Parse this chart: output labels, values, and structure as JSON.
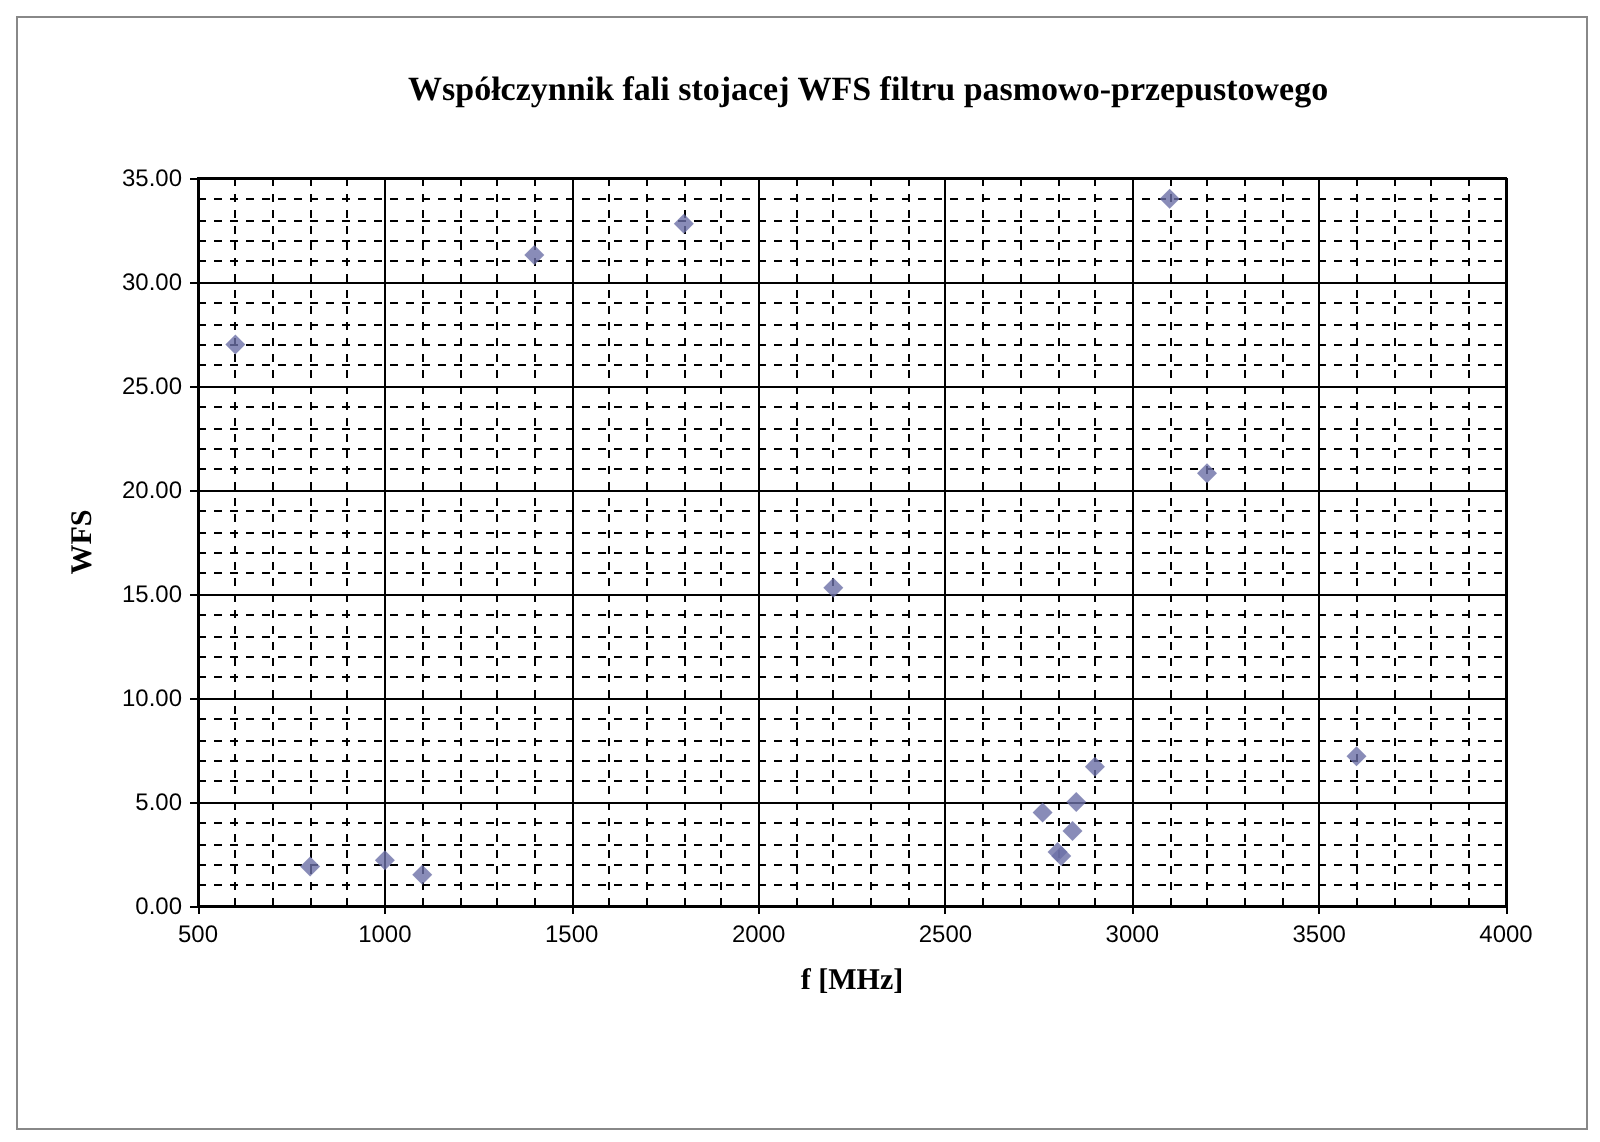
{
  "chart_data": {
    "type": "scatter",
    "title": "Współczynnik fali stojacej WFS filtru pasmowo-przepustowego",
    "xlabel": "f [MHz]",
    "ylabel": "WFS",
    "series": [
      {
        "color": "#6b6fa6",
        "x": [
          600,
          800,
          1000,
          1100,
          1400,
          1800,
          2200,
          2760,
          2800,
          2810,
          2840,
          2850,
          2900,
          3100,
          3200,
          3600
        ],
        "values": [
          27.0,
          1.9,
          2.2,
          1.5,
          31.3,
          32.8,
          15.3,
          4.5,
          2.6,
          2.4,
          3.6,
          5.0,
          6.7,
          34.0,
          20.8,
          7.2
        ]
      }
    ],
    "xlim": [
      500,
      4000
    ],
    "xticks": [
      500,
      1000,
      1500,
      2000,
      2500,
      3000,
      3500,
      4000
    ],
    "ylim": [
      0,
      35
    ],
    "yticks": [
      {
        "value": 0,
        "label": "0.00"
      },
      {
        "value": 5,
        "label": "5.00"
      },
      {
        "value": 10,
        "label": "10.00"
      },
      {
        "value": 15,
        "label": "15.00"
      },
      {
        "value": 20,
        "label": "20.00"
      },
      {
        "value": 25,
        "label": "25.00"
      },
      {
        "value": 30,
        "label": "30.00"
      },
      {
        "value": 35,
        "label": "35.00"
      }
    ],
    "grid": true,
    "marker": "diamond"
  }
}
